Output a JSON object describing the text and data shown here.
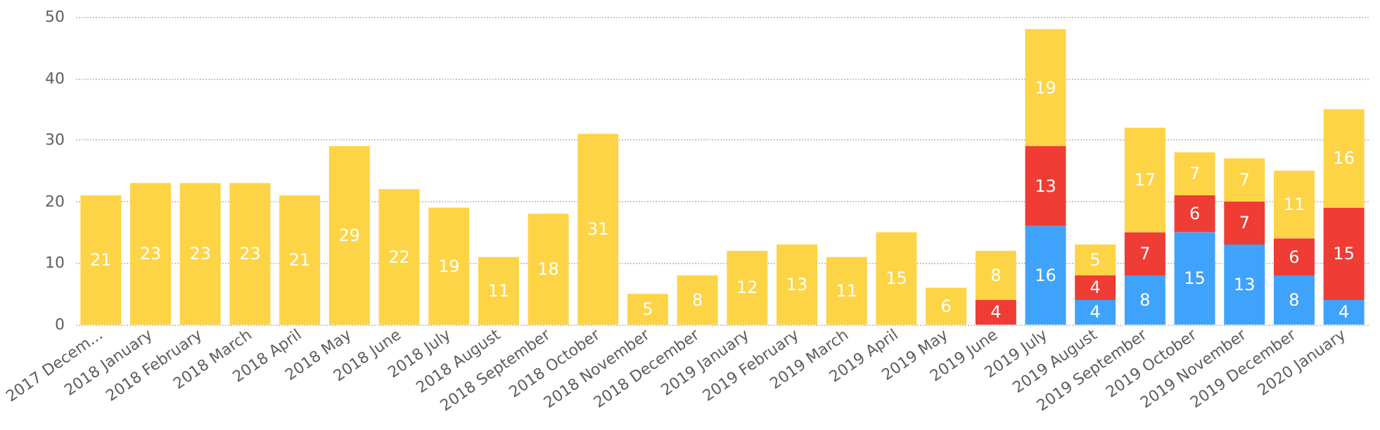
{
  "chart_data": {
    "type": "bar",
    "stacked": true,
    "data_labels": true,
    "grid": "y",
    "categories": [
      "2017 Decem...",
      "2018 January",
      "2018 February",
      "2018 March",
      "2018 April",
      "2018 May",
      "2018 June",
      "2018 July",
      "2018 August",
      "2018 September",
      "2018 October",
      "2018 November",
      "2018 December",
      "2019 January",
      "2019 February",
      "2019 March",
      "2019 April",
      "2019 May",
      "2019 June",
      "2019 July",
      "2019 August",
      "2019 September",
      "2019 October",
      "2019 November",
      "2019 December",
      "2020 January"
    ],
    "ylim": [
      0,
      50
    ],
    "yticks": [
      0,
      10,
      20,
      30,
      40,
      50
    ],
    "series": [
      {
        "color": "#40a3fb",
        "values": [
          null,
          null,
          null,
          null,
          null,
          null,
          null,
          null,
          null,
          null,
          null,
          null,
          null,
          null,
          null,
          null,
          null,
          null,
          null,
          16,
          4,
          8,
          15,
          13,
          8,
          4
        ]
      },
      {
        "color": "#ef3c35",
        "values": [
          null,
          null,
          null,
          null,
          null,
          null,
          null,
          null,
          null,
          null,
          null,
          null,
          null,
          null,
          null,
          null,
          null,
          null,
          4,
          13,
          4,
          7,
          6,
          7,
          6,
          15
        ]
      },
      {
        "color": "#fdd446",
        "values": [
          21,
          23,
          23,
          23,
          21,
          29,
          22,
          19,
          11,
          18,
          31,
          5,
          8,
          12,
          13,
          11,
          15,
          6,
          8,
          19,
          5,
          17,
          7,
          7,
          11,
          16
        ]
      }
    ]
  }
}
